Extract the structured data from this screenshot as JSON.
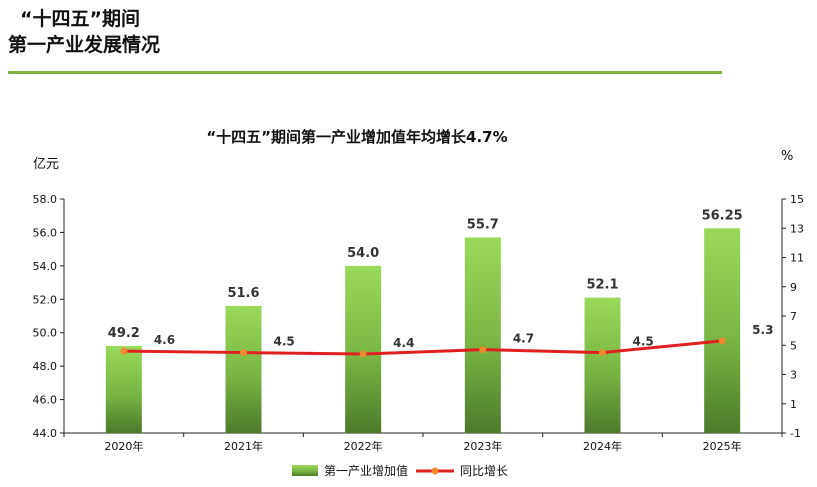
{
  "header": {
    "line1": "“十四五”期间",
    "line2": "第一产业发展情况"
  },
  "colors": {
    "accent_rule": "#7cb342",
    "bar_top": "#9ad95a",
    "bar_bottom": "#4e7a2a",
    "line": "#e02020",
    "marker": "#f08a30"
  },
  "chart_data": {
    "type": "bar",
    "title": "“十四五”期间第一产业增加值年均增长4.7%",
    "categories": [
      "2020年",
      "2021年",
      "2022年",
      "2023年",
      "2024年",
      "2025年"
    ],
    "y_left_unit": "亿元",
    "y_right_unit": "%",
    "ylim": [
      44.0,
      58.0
    ],
    "y_left_ticks": [
      "44.0",
      "46.0",
      "48.0",
      "50.0",
      "52.0",
      "54.0",
      "56.0",
      "58.0"
    ],
    "y2lim": [
      -1,
      15
    ],
    "y_right_ticks": [
      "-1",
      "1",
      "3",
      "5",
      "7",
      "9",
      "11",
      "13",
      "15"
    ],
    "series": [
      {
        "name": "第一产业增加值",
        "type": "bar",
        "values": [
          49.2,
          51.6,
          54.0,
          55.7,
          52.1,
          56.25
        ],
        "labels": [
          "49.2",
          "51.6",
          "54.0",
          "55.7",
          "52.1",
          "56.25"
        ]
      },
      {
        "name": "同比增长",
        "type": "line",
        "axis": "right",
        "values": [
          4.6,
          4.5,
          4.4,
          4.7,
          4.5,
          5.3
        ],
        "labels": [
          "4.6",
          "4.5",
          "4.4",
          "4.7",
          "4.5",
          "5.3"
        ]
      }
    ],
    "legend": "bottom",
    "grid": false
  }
}
